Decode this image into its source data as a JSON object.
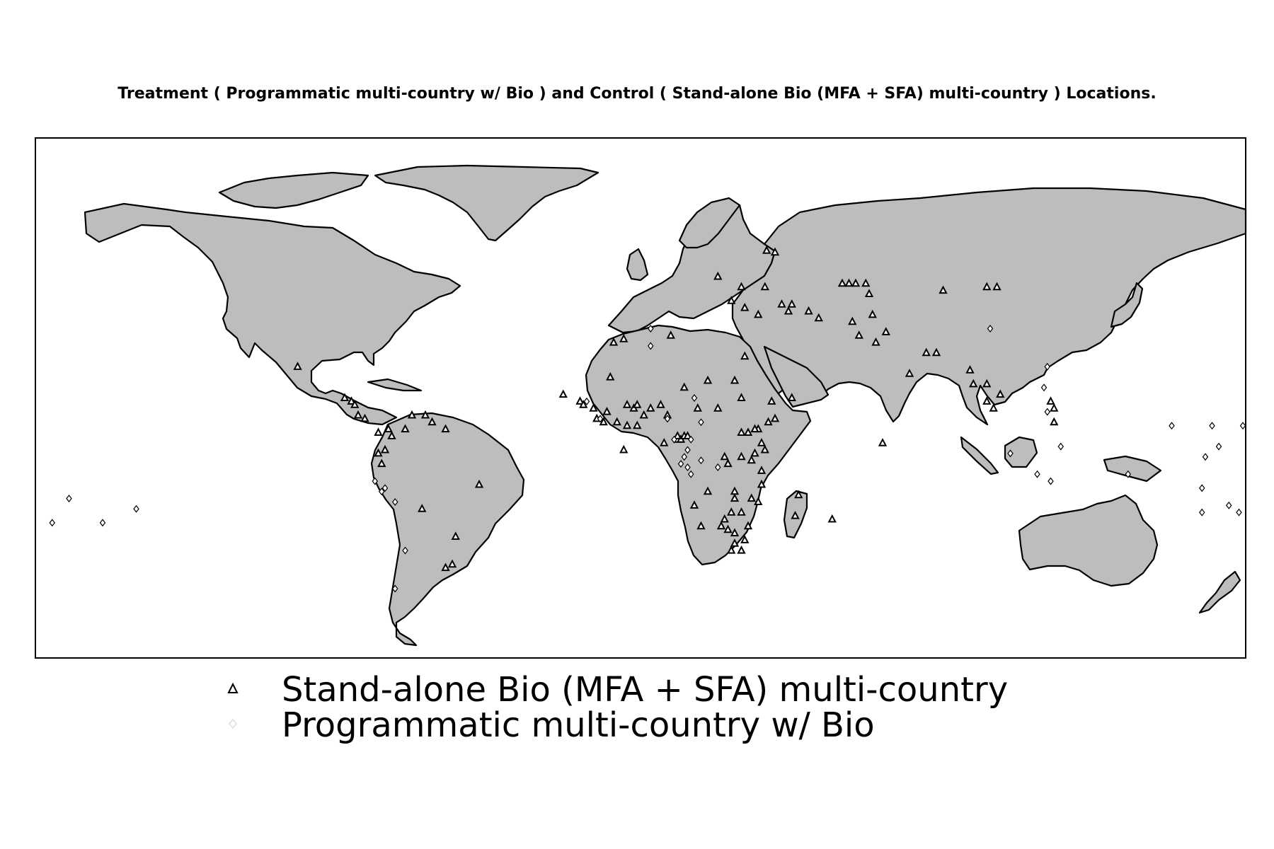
{
  "title": "Treatment ( Programmatic multi-country w/ Bio ) and Control ( Stand-alone Bio (MFA + SFA) multi-country ) Locations.",
  "colors": {
    "land": "#bdbdbd",
    "border": "#000000",
    "ocean": "#ffffff",
    "control_marker": "#000000",
    "treatment_marker": "#ffffff"
  },
  "legend": {
    "items": [
      {
        "label": "Stand-alone Bio (MFA + SFA) multi-country",
        "marker": "triangle",
        "color": "#000000"
      },
      {
        "label": "Programmatic multi-country w/ Bio",
        "marker": "diamond",
        "color": "#ffffff"
      }
    ]
  },
  "chart_data": {
    "type": "scatter",
    "projection": "equirectangular",
    "xlim": [
      -180,
      180
    ],
    "ylim": [
      -60,
      90
    ],
    "series": [
      {
        "name": "Stand-alone Bio (MFA + SFA) multi-country",
        "marker": "triangle",
        "points": [
          [
            37.5,
            57.5
          ],
          [
            40,
            57
          ],
          [
            23,
            50
          ],
          [
            30,
            47
          ],
          [
            27,
            43
          ],
          [
            31,
            41
          ],
          [
            35,
            39
          ],
          [
            42,
            42
          ],
          [
            44,
            40
          ],
          [
            45,
            42
          ],
          [
            50,
            40
          ],
          [
            53,
            38
          ],
          [
            37,
            47
          ],
          [
            62,
            48
          ],
          [
            60,
            48
          ],
          [
            64,
            48
          ],
          [
            67,
            48
          ],
          [
            68,
            45
          ],
          [
            90,
            46
          ],
          [
            103,
            47
          ],
          [
            106,
            47
          ],
          [
            69,
            39
          ],
          [
            63,
            37
          ],
          [
            65,
            33
          ],
          [
            70,
            31
          ],
          [
            73,
            34
          ],
          [
            80,
            22
          ],
          [
            85,
            28
          ],
          [
            88,
            28
          ],
          [
            98,
            23
          ],
          [
            99,
            19
          ],
          [
            103,
            19
          ],
          [
            103,
            14
          ],
          [
            107,
            16
          ],
          [
            105,
            12
          ],
          [
            123,
            12
          ],
          [
            123,
            8
          ],
          [
            122,
            14
          ],
          [
            -102,
            24
          ],
          [
            -88,
            15
          ],
          [
            -86,
            14
          ],
          [
            -85,
            13
          ],
          [
            -84,
            10
          ],
          [
            -82,
            9
          ],
          [
            -78,
            5
          ],
          [
            -75,
            6
          ],
          [
            -74,
            4
          ],
          [
            -70,
            6
          ],
          [
            -62,
            8
          ],
          [
            -58,
            6
          ],
          [
            -68,
            10
          ],
          [
            -64,
            10
          ],
          [
            -76,
            0
          ],
          [
            -78,
            -1
          ],
          [
            -77,
            -4
          ],
          [
            -65,
            -17
          ],
          [
            -48,
            -10
          ],
          [
            -55,
            -25
          ],
          [
            -56,
            -33
          ],
          [
            -58,
            -34
          ],
          [
            -18,
            14
          ],
          [
            -17,
            13
          ],
          [
            -14,
            12
          ],
          [
            -10,
            11
          ],
          [
            -13,
            9
          ],
          [
            -11,
            8
          ],
          [
            -7,
            8
          ],
          [
            -4,
            7
          ],
          [
            -1,
            7
          ],
          [
            1,
            10
          ],
          [
            3,
            12
          ],
          [
            6,
            13
          ],
          [
            8,
            10
          ],
          [
            -2,
            12
          ],
          [
            -4,
            13
          ],
          [
            -1,
            13
          ],
          [
            -9,
            21
          ],
          [
            -8,
            31
          ],
          [
            -5,
            32
          ],
          [
            9,
            33
          ],
          [
            31,
            27
          ],
          [
            45,
            15
          ],
          [
            30,
            15
          ],
          [
            39,
            14
          ],
          [
            40,
            9
          ],
          [
            38,
            8
          ],
          [
            35,
            6
          ],
          [
            34,
            6
          ],
          [
            32,
            5
          ],
          [
            30,
            5
          ],
          [
            36,
            2
          ],
          [
            37,
            0
          ],
          [
            34,
            -1
          ],
          [
            33,
            -3
          ],
          [
            30,
            -2
          ],
          [
            26,
            -4
          ],
          [
            25,
            -2
          ],
          [
            36,
            -6
          ],
          [
            36,
            -10
          ],
          [
            33,
            -14
          ],
          [
            35,
            -15
          ],
          [
            28,
            -12
          ],
          [
            28,
            -14
          ],
          [
            27,
            -18
          ],
          [
            25,
            -20
          ],
          [
            24,
            -22
          ],
          [
            26,
            -23
          ],
          [
            30,
            -18
          ],
          [
            32,
            -22
          ],
          [
            28,
            -24
          ],
          [
            28,
            -27
          ],
          [
            27,
            -29
          ],
          [
            30,
            -29
          ],
          [
            31,
            -26
          ],
          [
            20,
            -12
          ],
          [
            18,
            -22
          ],
          [
            16,
            -16
          ],
          [
            46,
            -19
          ],
          [
            47,
            -13
          ],
          [
            57,
            -20
          ],
          [
            72,
            2
          ],
          [
            -23,
            16
          ],
          [
            -5,
            0
          ],
          [
            7,
            2
          ],
          [
            11,
            3
          ],
          [
            11,
            4
          ],
          [
            12,
            3
          ],
          [
            13,
            4
          ],
          [
            14,
            4
          ],
          [
            17,
            12
          ],
          [
            23,
            12
          ],
          [
            28,
            20
          ],
          [
            20,
            20
          ],
          [
            13,
            18
          ]
        ]
      },
      {
        "name": "Programmatic multi-country w/ Bio",
        "marker": "diamond",
        "points": [
          [
            3,
            35
          ],
          [
            3,
            30
          ],
          [
            8,
            9
          ],
          [
            16,
            15
          ],
          [
            18,
            8
          ],
          [
            15,
            3
          ],
          [
            13,
            -2
          ],
          [
            12,
            -4
          ],
          [
            14,
            -5
          ],
          [
            15,
            -7
          ],
          [
            18,
            -3
          ],
          [
            23,
            -5
          ],
          [
            14,
            0
          ],
          [
            10,
            3
          ],
          [
            -16,
            14
          ],
          [
            -12,
            9
          ],
          [
            -79,
            -9
          ],
          [
            -76,
            -11
          ],
          [
            -77,
            -12
          ],
          [
            -73,
            -15
          ],
          [
            -70,
            -29
          ],
          [
            -73,
            -40
          ],
          [
            104,
            35
          ],
          [
            121,
            24
          ],
          [
            120,
            18
          ],
          [
            121,
            11
          ],
          [
            125,
            1
          ],
          [
            110,
            -1
          ],
          [
            118,
            -7
          ],
          [
            122,
            -9
          ],
          [
            145,
            -7
          ],
          [
            158,
            7
          ],
          [
            182,
            7
          ],
          [
            170,
            7
          ],
          [
            168,
            -2
          ],
          [
            172,
            1
          ],
          [
            167,
            -11
          ],
          [
            167,
            -18
          ],
          [
            178,
            -18
          ],
          [
            175,
            -16
          ],
          [
            -175,
            -21
          ],
          [
            -160,
            -21
          ],
          [
            -150,
            -17
          ],
          [
            -170,
            -14
          ]
        ]
      }
    ]
  }
}
